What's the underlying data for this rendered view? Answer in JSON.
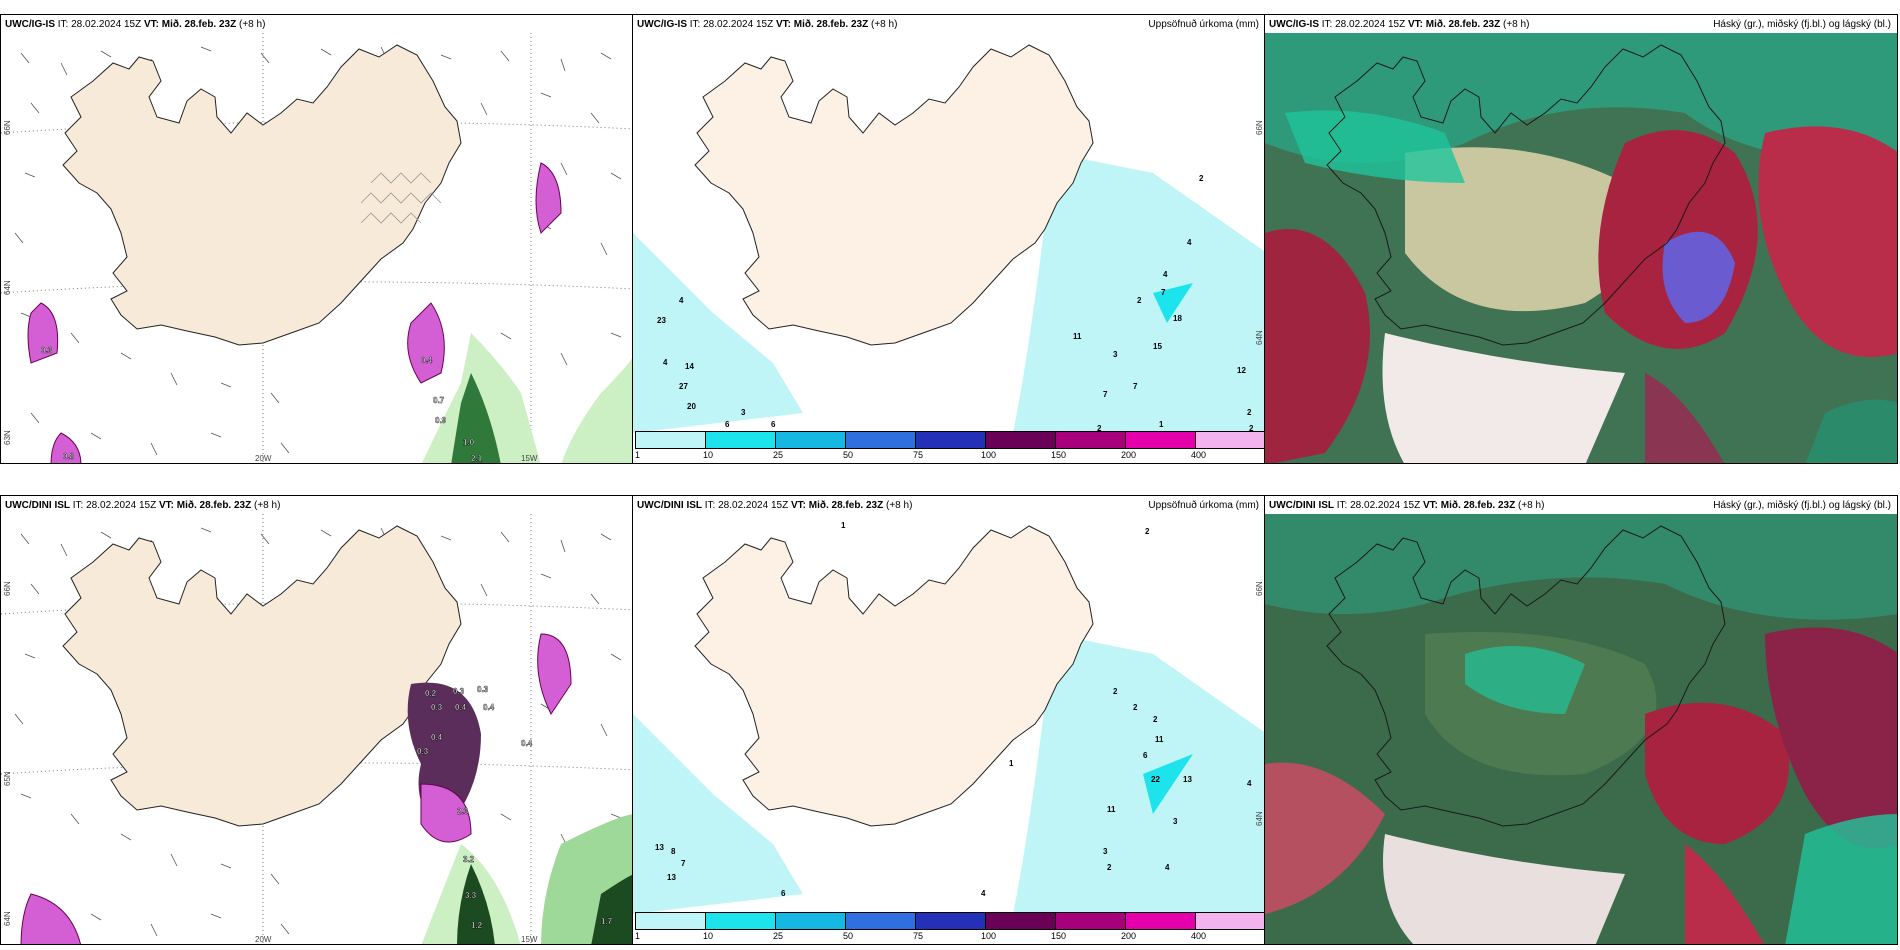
{
  "panels": {
    "ig_wind": {
      "model": "UWC/IG-IS",
      "it_label": "IT:",
      "it": "28.02.2024 15Z",
      "vt_label": "VT:",
      "vt": "Mið. 28.feb. 23Z",
      "lead": "(+8 h)",
      "title_right": "",
      "lon_labels": [
        "20W",
        "15W"
      ],
      "lat_labels": [
        "66N",
        "64N",
        "63N"
      ],
      "values": [
        "0.7",
        "0.9",
        "1.0",
        "2.1",
        "0.4",
        "0.3",
        "0.8"
      ]
    },
    "ig_precip": {
      "model": "UWC/IG-IS",
      "it_label": "IT:",
      "it": "28.02.2024 15Z",
      "vt_label": "VT:",
      "vt": "Mið. 28.feb. 23Z",
      "lead": "(+8 h)",
      "title_right": "Uppsöfnuð úrkoma (mm)",
      "lat_labels": [
        "66N",
        "64N"
      ],
      "values": [
        "4",
        "23",
        "4",
        "14",
        "27",
        "20",
        "3",
        "6",
        "6",
        "2",
        "4",
        "4",
        "7",
        "2",
        "18",
        "15",
        "3",
        "7",
        "7",
        "12",
        "2",
        "1",
        "2",
        "2",
        "11"
      ]
    },
    "ig_cloud": {
      "model": "UWC/IG-IS",
      "it_label": "IT:",
      "it": "28.02.2024 15Z",
      "vt_label": "VT:",
      "vt": "Mið. 28.feb. 23Z",
      "lead": "(+8 h)",
      "title_right": "Háský (gr.), miðský (fj.bl.) og lágský (bl.)"
    },
    "dini_wind": {
      "model": "UWC/DINI ISL",
      "it_label": "IT:",
      "it": "28.02.2024 15Z",
      "vt_label": "VT:",
      "vt": "Mið. 28.feb. 23Z",
      "lead": "(+8 h)",
      "title_right": "",
      "lon_labels": [
        "20W",
        "15W"
      ],
      "lat_labels": [
        "66N",
        "65N",
        "64N"
      ],
      "values": [
        "0.2",
        "0.3",
        "0.3",
        "0.3",
        "0.4",
        "0.4",
        "0.4",
        "0.3",
        "0.4",
        "2.3",
        "3.2",
        "3.3",
        "1.2",
        "1.7"
      ]
    },
    "dini_precip": {
      "model": "UWC/DINI ISL",
      "it_label": "IT:",
      "it": "28.02.2024 15Z",
      "vt_label": "VT:",
      "vt": "Mið. 28.feb. 23Z",
      "lead": "(+8 h)",
      "title_right": "Uppsöfnuð úrkoma (mm)",
      "lat_labels": [
        "66N",
        "64N"
      ],
      "values": [
        "1",
        "2",
        "2",
        "2",
        "2",
        "11",
        "6",
        "22",
        "13",
        "4",
        "1",
        "11",
        "3",
        "3",
        "2",
        "4",
        "13",
        "8",
        "7",
        "13",
        "6",
        "4"
      ]
    },
    "dini_cloud": {
      "model": "UWC/DINI ISL",
      "it_label": "IT:",
      "it": "28.02.2024 15Z",
      "vt_label": "VT:",
      "vt": "Mið. 28.feb. 23Z",
      "lead": "(+8 h)",
      "title_right": "Háský (gr.), miðský (fj.bl.) og lágský (bl.)"
    }
  },
  "colorbar": {
    "ticks": [
      "1",
      "10",
      "25",
      "50",
      "75",
      "100",
      "150",
      "200",
      "400"
    ],
    "colors": [
      "#bff5f7",
      "#1de3ec",
      "#17b7e3",
      "#2f6fe0",
      "#2530b8",
      "#6b0057",
      "#a8007c",
      "#e400ab",
      "#f3b3ee"
    ]
  },
  "colors": {
    "land": "#f7ead9",
    "precip_light": "#bff5f7",
    "precip_mid": "#1de3ec",
    "magenta": "#d45fd4",
    "green_light": "#ccefc4",
    "green_dark": "#1c4a21",
    "cloud_green": "#1fc49b",
    "cloud_red": "#b92d4b",
    "cloud_blue": "#6a5bd0"
  }
}
